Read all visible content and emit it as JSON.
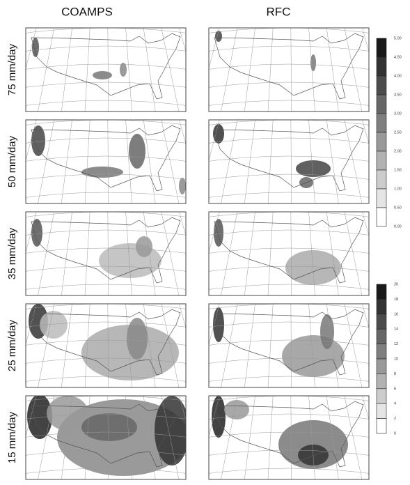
{
  "columns": [
    "COAMPS",
    "RFC"
  ],
  "rows": [
    "75 mm/day",
    "50 mm/day",
    "35 mm/day",
    "25 mm/day",
    "15 mm/day"
  ],
  "colorbars": [
    {
      "labels": [
        "5.00",
        "4.50",
        "4.00",
        "3.50",
        "3.00",
        "2.50",
        "2.00",
        "1.50",
        "1.00",
        "0.50",
        "0.00"
      ]
    },
    {
      "labels": [
        "20",
        "18",
        "16",
        "14",
        "12",
        "10",
        "8",
        "6",
        "4",
        "2",
        "0"
      ]
    }
  ]
}
